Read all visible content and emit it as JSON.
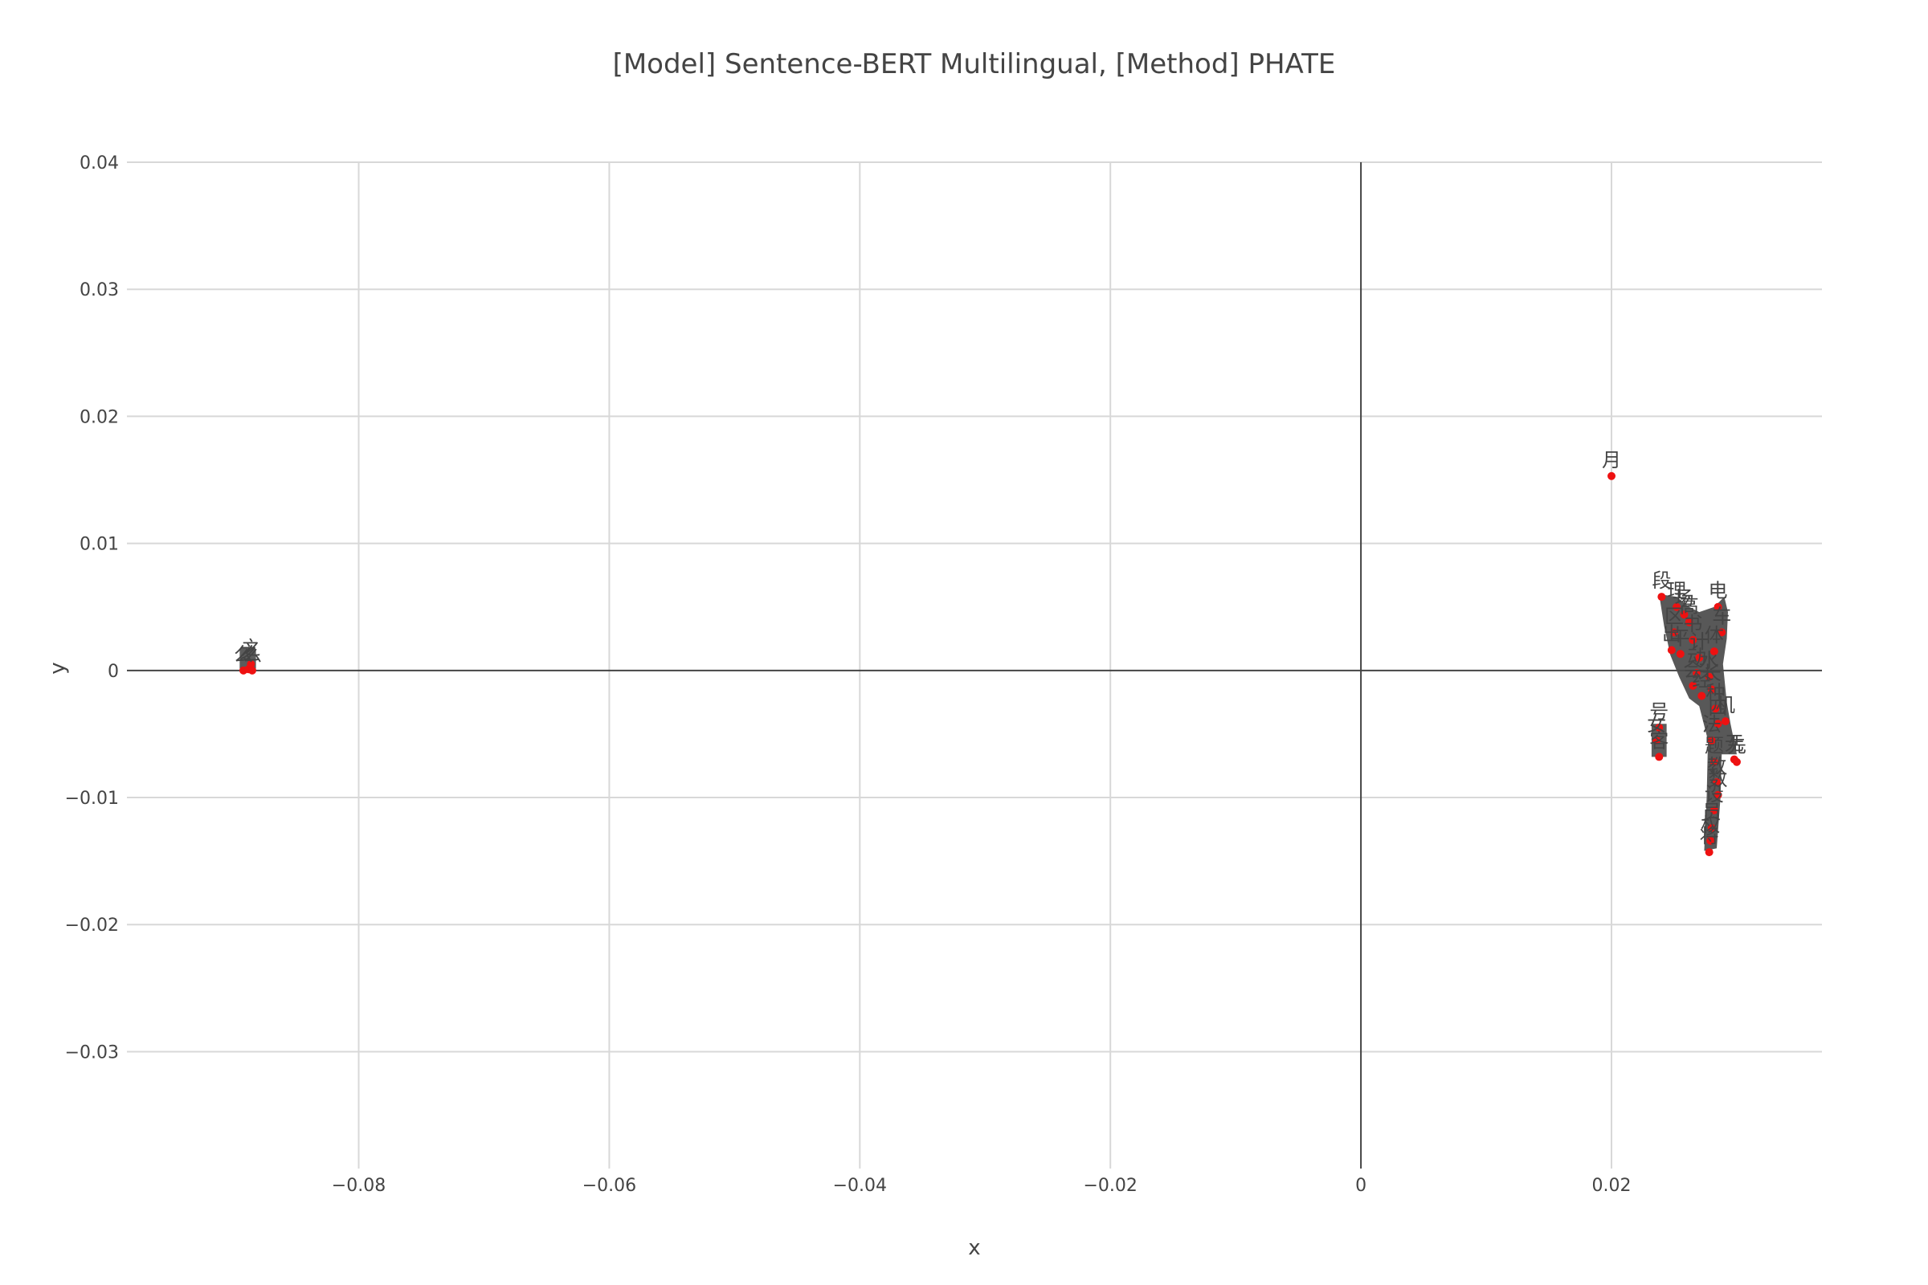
{
  "chart_data": {
    "type": "scatter",
    "title": "[Model] Sentence-BERT Multilingual, [Method] PHATE",
    "xlabel": "x",
    "ylabel": "y",
    "xlim": [
      -0.0985,
      0.0368
    ],
    "ylim": [
      -0.0392,
      0.04
    ],
    "x_ticks": [
      -0.08,
      -0.06,
      -0.04,
      -0.02,
      0,
      0.02
    ],
    "x_tick_labels": [
      "−0.08",
      "−0.06",
      "−0.04",
      "−0.02",
      "0",
      "0.02"
    ],
    "y_ticks": [
      -0.03,
      -0.02,
      -0.01,
      0,
      0.01,
      0.02,
      0.03,
      0.04
    ],
    "y_tick_labels": [
      "−0.03",
      "−0.02",
      "−0.01",
      "0",
      "0.01",
      "0.02",
      "0.03",
      "0.04"
    ],
    "grid": true,
    "zero_lines": true,
    "marker_color": "#ee1111",
    "points": [
      {
        "x": 0.02,
        "y": 0.0153,
        "label": "月"
      },
      {
        "x": 0.024,
        "y": 0.0058,
        "label": "段"
      },
      {
        "x": 0.0252,
        "y": 0.005,
        "label": "理"
      },
      {
        "x": 0.0258,
        "y": 0.0044,
        "label": "场"
      },
      {
        "x": 0.0262,
        "y": 0.0038,
        "label": "高"
      },
      {
        "x": 0.025,
        "y": 0.003,
        "label": "区"
      },
      {
        "x": 0.0248,
        "y": 0.0016,
        "label": "出"
      },
      {
        "x": 0.0255,
        "y": 0.0013,
        "label": "平"
      },
      {
        "x": 0.0265,
        "y": 0.0024,
        "label": "书"
      },
      {
        "x": 0.027,
        "y": 0.001,
        "label": "计"
      },
      {
        "x": 0.0268,
        "y": -0.0002,
        "label": "动"
      },
      {
        "x": 0.0265,
        "y": -0.0012,
        "label": "会"
      },
      {
        "x": 0.0272,
        "y": -0.002,
        "label": "经"
      },
      {
        "x": 0.0278,
        "y": -0.0005,
        "label": "水"
      },
      {
        "x": 0.0285,
        "y": 0.005,
        "label": "电"
      },
      {
        "x": 0.0288,
        "y": 0.003,
        "label": "车"
      },
      {
        "x": 0.0282,
        "y": 0.0015,
        "label": "体"
      },
      {
        "x": 0.028,
        "y": -0.0015,
        "label": "长"
      },
      {
        "x": 0.0283,
        "y": -0.003,
        "label": "种"
      },
      {
        "x": 0.0285,
        "y": -0.0042,
        "label": "四"
      },
      {
        "x": 0.0291,
        "y": -0.004,
        "label": "机"
      },
      {
        "x": 0.028,
        "y": -0.0055,
        "label": "法"
      },
      {
        "x": 0.0298,
        "y": -0.007,
        "label": "无"
      },
      {
        "x": 0.03,
        "y": -0.0072,
        "label": "先"
      },
      {
        "x": 0.0282,
        "y": -0.0072,
        "label": "题"
      },
      {
        "x": 0.0284,
        "y": -0.0088,
        "label": "教"
      },
      {
        "x": 0.0285,
        "y": -0.0098,
        "label": "数"
      },
      {
        "x": 0.0282,
        "y": -0.011,
        "label": "设"
      },
      {
        "x": 0.028,
        "y": -0.0124,
        "label": "员"
      },
      {
        "x": 0.0279,
        "y": -0.0134,
        "label": "权"
      },
      {
        "x": 0.0278,
        "y": -0.0143,
        "label": "将"
      },
      {
        "x": 0.0238,
        "y": -0.0045,
        "label": "号"
      },
      {
        "x": 0.0236,
        "y": -0.0055,
        "label": "女"
      },
      {
        "x": 0.0238,
        "y": -0.0068,
        "label": "客"
      },
      {
        "x": -0.0892,
        "y": 0.0,
        "label": "么"
      },
      {
        "x": -0.0888,
        "y": 0.0001,
        "label": "之"
      },
      {
        "x": -0.0885,
        "y": 0.0,
        "label": "么"
      },
      {
        "x": -0.0886,
        "y": 0.0005,
        "label": "之"
      }
    ]
  }
}
